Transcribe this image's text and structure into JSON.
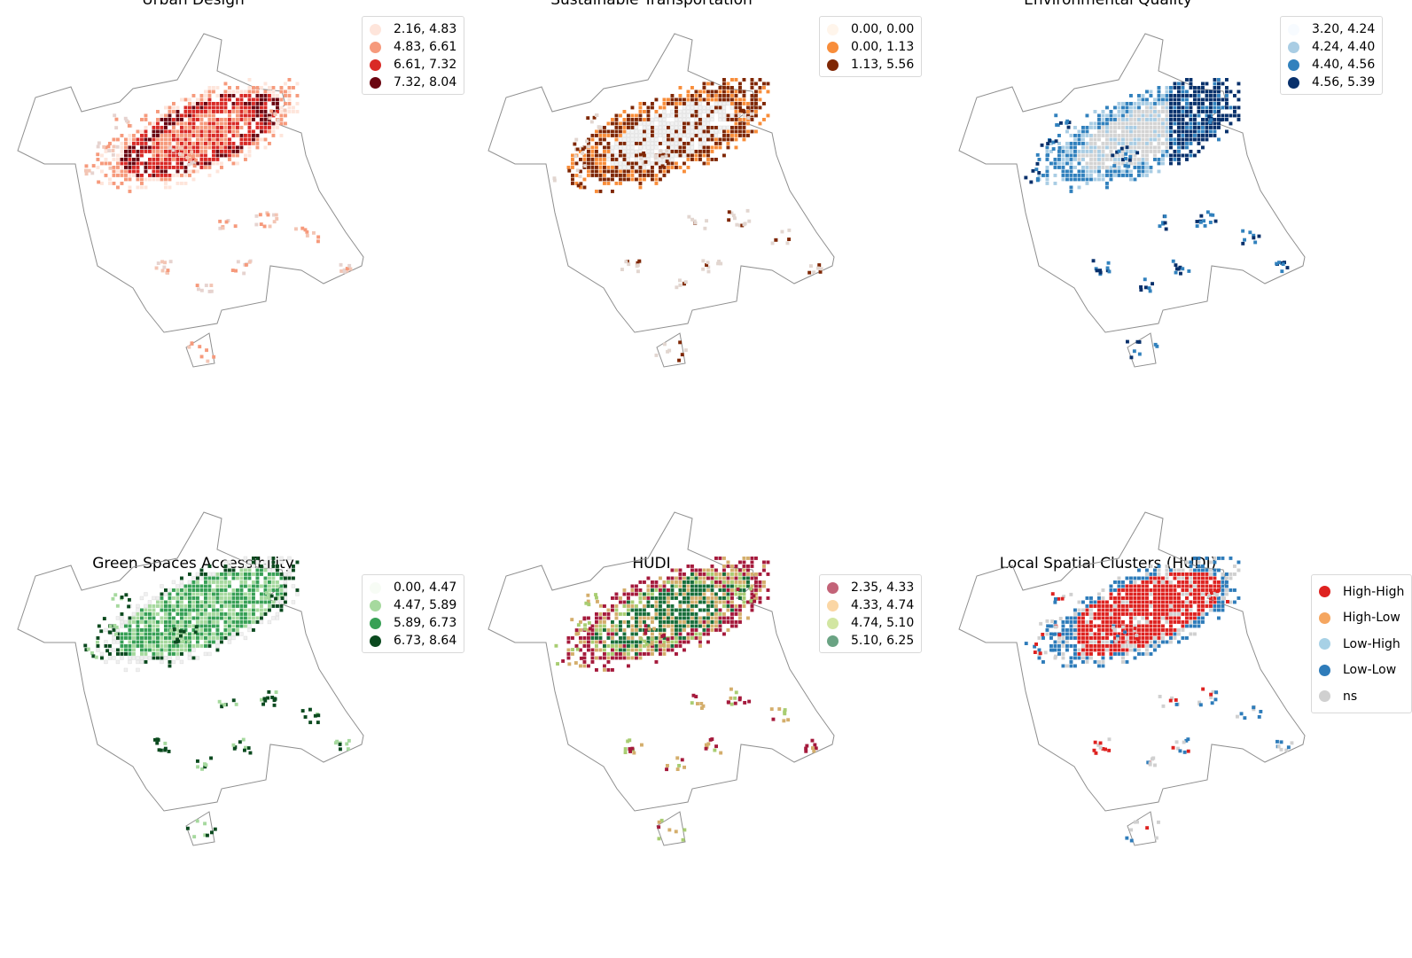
{
  "panels": [
    {
      "title": "Urban Design",
      "palette": [
        "#fee5db",
        "#f69a7c",
        "#d92a26",
        "#6a0510"
      ],
      "legend": [
        {
          "label": "2.16, 4.83",
          "color": "#fee5db"
        },
        {
          "label": "4.83, 6.61",
          "color": "#f69a7c"
        },
        {
          "label": "6.61, 7.32",
          "color": "#d92a26"
        },
        {
          "label": "7.32, 8.04",
          "color": "#6a0510"
        }
      ],
      "mode": "core"
    },
    {
      "title": "Sustainable Transportation",
      "palette": [
        "#fff5eb",
        "#f88d3a",
        "#7f2704"
      ],
      "legend": [
        {
          "label": "0.00, 0.00",
          "color": "#fff5eb"
        },
        {
          "label": "0.00, 1.13",
          "color": "#f88d3a"
        },
        {
          "label": "1.13, 5.56",
          "color": "#7f2704"
        }
      ],
      "mode": "ring"
    },
    {
      "title": "Environmental Quality",
      "palette": [
        "#f7fbff",
        "#a9cde4",
        "#3181bd",
        "#08306b"
      ],
      "legend": [
        {
          "label": "3.20, 4.24",
          "color": "#f7fbff"
        },
        {
          "label": "4.24, 4.40",
          "color": "#a9cde4"
        },
        {
          "label": "4.40, 4.56",
          "color": "#3181bd"
        },
        {
          "label": "4.56, 5.39",
          "color": "#08306b"
        }
      ],
      "mode": "east"
    },
    {
      "title": "Green Spaces Accessibility",
      "palette": [
        "#f7fcf5",
        "#a6d99e",
        "#37a055",
        "#0b4a1f"
      ],
      "legend": [
        {
          "label": "0.00, 4.47",
          "color": "#f7fcf5"
        },
        {
          "label": "4.47, 5.89",
          "color": "#a6d99e"
        },
        {
          "label": "5.89, 6.73",
          "color": "#37a055"
        },
        {
          "label": "6.73, 8.64",
          "color": "#0b4a1f"
        }
      ],
      "mode": "green"
    },
    {
      "title": "HUDI",
      "palette": [
        "#c36378",
        "#fbd6a4",
        "#d2e6a2",
        "#6aa383"
      ],
      "legend": [
        {
          "label": "2.35, 4.33",
          "color": "#c36378"
        },
        {
          "label": "4.33, 4.74",
          "color": "#fbd6a4"
        },
        {
          "label": "4.74, 5.10",
          "color": "#d2e6a2"
        },
        {
          "label": "5.10, 6.25",
          "color": "#6aa383"
        }
      ],
      "cell_colors": [
        "#a51a3c",
        "#d4ae6c",
        "#a8cd72",
        "#186e3a"
      ],
      "mode": "hudi"
    },
    {
      "title": "Local Spatial Clusters (HUDI)",
      "palette": [
        "#de2220",
        "#f5a660",
        "#a7d1e6",
        "#2e7cba",
        "#d0d0d0"
      ],
      "legend": [
        {
          "label": "High-High",
          "color": "#de2220"
        },
        {
          "label": "High-Low",
          "color": "#f5a660"
        },
        {
          "label": "Low-High",
          "color": "#a7d1e6"
        },
        {
          "label": "Low-Low",
          "color": "#2e7cba"
        },
        {
          "label": "ns",
          "color": "#d0d0d0"
        }
      ],
      "mode": "clusters"
    }
  ]
}
